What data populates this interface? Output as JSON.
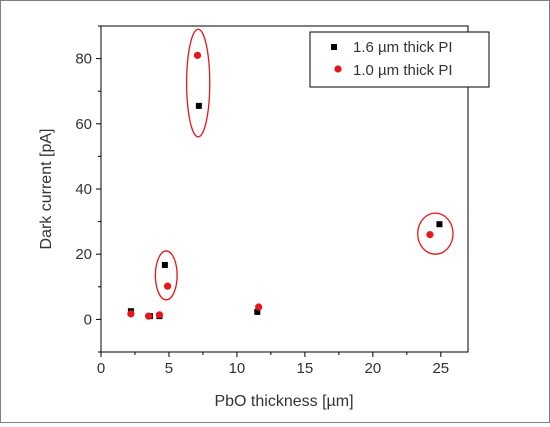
{
  "chart_data": {
    "type": "scatter",
    "xlabel": "PbO thickness [µm]",
    "ylabel": "Dark current [pA]",
    "xlim": [
      0,
      27
    ],
    "ylim": [
      -10,
      90
    ],
    "xticks": [
      0,
      5,
      10,
      15,
      20,
      25
    ],
    "yticks": [
      0,
      20,
      40,
      60,
      80
    ],
    "grid": false,
    "legend_position": "top-right",
    "series": [
      {
        "name": "1.6 µm thick PI",
        "marker": "square",
        "color": "#000000",
        "points": [
          {
            "x": 2.2,
            "y": 2.5
          },
          {
            "x": 3.6,
            "y": 1.0
          },
          {
            "x": 4.3,
            "y": 1.0
          },
          {
            "x": 4.7,
            "y": 16.7
          },
          {
            "x": 7.2,
            "y": 65.5
          },
          {
            "x": 11.5,
            "y": 2.3
          },
          {
            "x": 24.9,
            "y": 29.2
          }
        ]
      },
      {
        "name": "1.0 µm thick PI",
        "marker": "circle",
        "color": "#e8161b",
        "points": [
          {
            "x": 2.2,
            "y": 1.7
          },
          {
            "x": 3.5,
            "y": 1.0
          },
          {
            "x": 4.3,
            "y": 1.4
          },
          {
            "x": 4.9,
            "y": 10.2
          },
          {
            "x": 7.1,
            "y": 81.0
          },
          {
            "x": 11.6,
            "y": 3.8
          },
          {
            "x": 24.2,
            "y": 26.0
          }
        ]
      }
    ],
    "annotations": [
      {
        "shape": "ellipse",
        "color": "#e8161b",
        "cx": 7.15,
        "cy": 72.5,
        "rx": 0.85,
        "ry": 16.5
      },
      {
        "shape": "ellipse",
        "color": "#e8161b",
        "cx": 4.8,
        "cy": 13.5,
        "rx": 0.8,
        "ry": 7.5
      },
      {
        "shape": "ellipse",
        "color": "#e8161b",
        "cx": 24.6,
        "cy": 26.3,
        "rx": 1.3,
        "ry": 6.3
      }
    ]
  }
}
